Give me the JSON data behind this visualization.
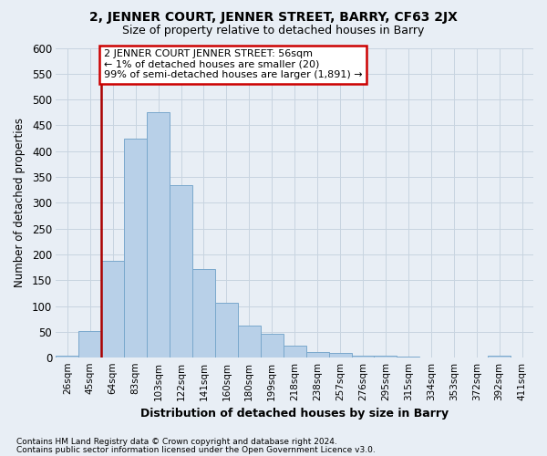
{
  "title1": "2, JENNER COURT, JENNER STREET, BARRY, CF63 2JX",
  "title2": "Size of property relative to detached houses in Barry",
  "xlabel": "Distribution of detached houses by size in Barry",
  "ylabel": "Number of detached properties",
  "bar_labels": [
    "26sqm",
    "45sqm",
    "64sqm",
    "83sqm",
    "103sqm",
    "122sqm",
    "141sqm",
    "160sqm",
    "180sqm",
    "199sqm",
    "218sqm",
    "238sqm",
    "257sqm",
    "276sqm",
    "295sqm",
    "315sqm",
    "334sqm",
    "353sqm",
    "372sqm",
    "392sqm",
    "411sqm"
  ],
  "bar_values": [
    5,
    52,
    187,
    425,
    475,
    335,
    172,
    107,
    62,
    46,
    24,
    11,
    9,
    5,
    4,
    2,
    1,
    1,
    0,
    4,
    1
  ],
  "bar_color": "#b8d0e8",
  "bar_edge_color": "#7aa8cc",
  "background_color": "#e8eef5",
  "grid_color": "#d0d8e4",
  "vline_x_index": 2,
  "vline_color": "#aa0000",
  "annotation_text": "2 JENNER COURT JENNER STREET: 56sqm\n← 1% of detached houses are smaller (20)\n99% of semi-detached houses are larger (1,891) →",
  "annotation_box_color": "#ffffff",
  "annotation_box_edge": "#cc0000",
  "ylim": [
    0,
    600
  ],
  "yticks": [
    0,
    50,
    100,
    150,
    200,
    250,
    300,
    350,
    400,
    450,
    500,
    550,
    600
  ],
  "footer1": "Contains HM Land Registry data © Crown copyright and database right 2024.",
  "footer2": "Contains public sector information licensed under the Open Government Licence v3.0."
}
